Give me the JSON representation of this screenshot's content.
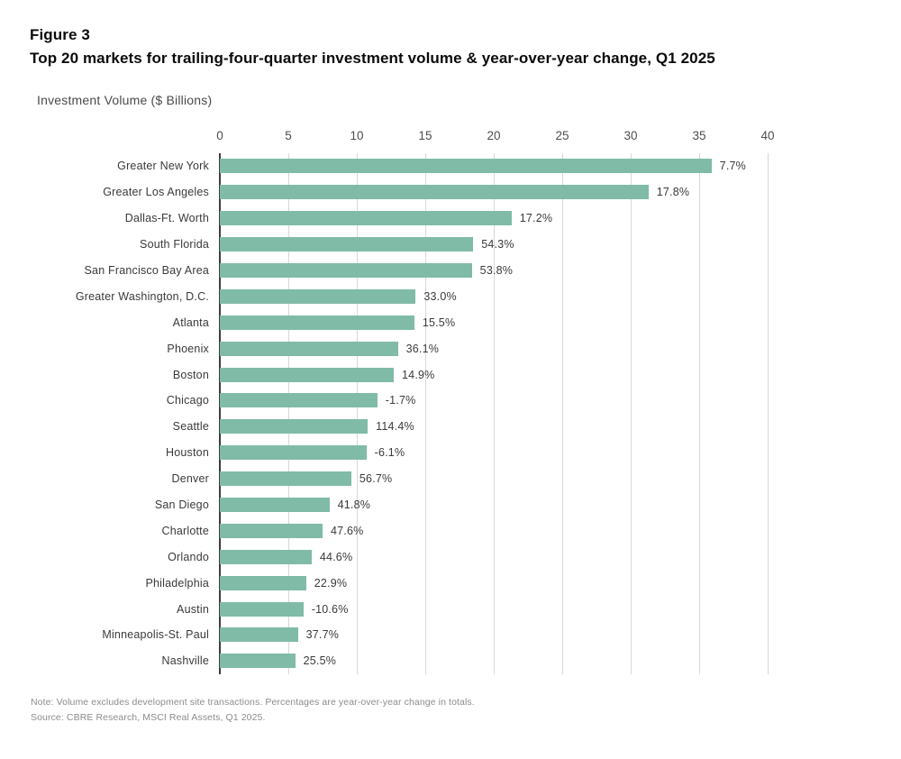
{
  "figure": {
    "label": "Figure 3",
    "title": "Top 20 markets for trailing-four-quarter investment volume & year-over-year change, Q1 2025"
  },
  "chart_data": {
    "type": "bar",
    "orientation": "horizontal",
    "title": "Top 20 markets for trailing-four-quarter investment volume & year-over-year change, Q1 2025",
    "xlabel": "Investment Volume ($ Billions)",
    "ylabel": "",
    "xlim": [
      0,
      40
    ],
    "x_ticks": [
      0,
      5,
      10,
      15,
      20,
      25,
      30,
      35,
      40
    ],
    "grid": true,
    "bar_color": "#80bba8",
    "categories": [
      "Greater New York",
      "Greater Los Angeles",
      "Dallas-Ft. Worth",
      "South Florida",
      "San Francisco Bay Area",
      "Greater Washington, D.C.",
      "Atlanta",
      "Phoenix",
      "Boston",
      "Chicago",
      "Seattle",
      "Houston",
      "Denver",
      "San Diego",
      "Charlotte",
      "Orlando",
      "Philadelphia",
      "Austin",
      "Minneapolis-St. Paul",
      "Nashville"
    ],
    "values": [
      35.9,
      31.3,
      21.3,
      18.5,
      18.4,
      14.3,
      14.2,
      13.0,
      12.7,
      11.5,
      10.8,
      10.7,
      9.6,
      8.0,
      7.5,
      6.7,
      6.3,
      6.1,
      5.7,
      5.5
    ],
    "yoy_change_labels": [
      "7.7%",
      "17.8%",
      "17.2%",
      "54.3%",
      "53.8%",
      "33.0%",
      "15.5%",
      "36.1%",
      "14.9%",
      "-1.7%",
      "114.4%",
      "-6.1%",
      "56.7%",
      "41.8%",
      "47.6%",
      "44.6%",
      "22.9%",
      "-10.6%",
      "37.7%",
      "25.5%"
    ],
    "value_units": "$ Billions",
    "data_label_meaning": "year-over-year change"
  },
  "footnotes": {
    "note": "Note: Volume excludes development site transactions. Percentages are year-over-year change in totals.",
    "source": "Source: CBRE Research, MSCI Real Assets, Q1 2025."
  },
  "colors": {
    "bar": "#80bba8",
    "gridline": "#d8d8d8",
    "axis_line": "#3d3d3d",
    "text_dark": "#3a3a3a",
    "text_footnote": "#8c8c8c"
  }
}
